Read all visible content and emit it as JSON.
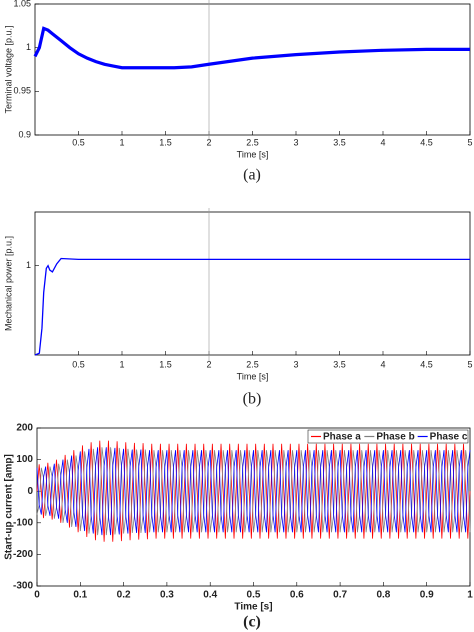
{
  "chart_data": [
    {
      "type": "line",
      "caption": "(a)",
      "xlabel": "Time [s]",
      "ylabel": "Terminal voltage [p.u.]",
      "x": [
        0,
        0.05,
        0.1,
        0.15,
        0.2,
        0.3,
        0.4,
        0.5,
        0.6,
        0.7,
        0.8,
        0.9,
        1,
        1.2,
        1.4,
        1.6,
        1.8,
        2,
        2.5,
        3,
        3.5,
        4,
        4.5,
        5
      ],
      "values": [
        0.99,
        1.0,
        1.022,
        1.02,
        1.016,
        1.008,
        1.0,
        0.993,
        0.988,
        0.984,
        0.981,
        0.979,
        0.977,
        0.977,
        0.977,
        0.977,
        0.978,
        0.981,
        0.988,
        0.992,
        0.995,
        0.997,
        0.998,
        0.998
      ],
      "color": "#0000ff",
      "xlim": [
        0,
        5
      ],
      "ylim": [
        0.9,
        1.05
      ],
      "xticks": [
        0.5,
        1,
        1.5,
        2,
        2.5,
        3,
        3.5,
        4,
        4.5,
        5
      ],
      "yticks": [
        0.9,
        0.95,
        1,
        1.05
      ],
      "cursor_x": 2
    },
    {
      "type": "line",
      "caption": "(b)",
      "xlabel": "Time [s]",
      "ylabel": "Mechanical power [p.u.]",
      "x": [
        0,
        0.05,
        0.08,
        0.1,
        0.13,
        0.15,
        0.17,
        0.2,
        0.25,
        0.3,
        0.5,
        1,
        5
      ],
      "values": [
        0,
        0.02,
        0.3,
        0.7,
        0.97,
        1.0,
        0.95,
        0.93,
        1.02,
        1.08,
        1.07,
        1.07,
        1.07
      ],
      "color": "#0000ff",
      "xlim": [
        0,
        5
      ],
      "ylim": [
        0,
        1.6
      ],
      "xticks": [
        0.5,
        1,
        1.5,
        2,
        2.5,
        3,
        3.5,
        4,
        4.5,
        5
      ],
      "yticks": [
        1
      ],
      "cursor_x": 2
    },
    {
      "type": "line",
      "caption": "(c)",
      "xlabel": "Time [s]",
      "ylabel": "Start-up current [amp]",
      "x": [
        0,
        0.005,
        0.01,
        0.015,
        0.02,
        0.025,
        0.03,
        0.035,
        0.04,
        0.045,
        0.05,
        0.055,
        0.06,
        0.065,
        0.07,
        0.075,
        0.08,
        0.085,
        0.09,
        0.095,
        0.1,
        0.105,
        0.11,
        0.115,
        0.12,
        0.125,
        0.13,
        0.135,
        0.14,
        0.145,
        0.15,
        0.155,
        0.16,
        0.165,
        0.17,
        0.175,
        0.18,
        0.185,
        0.19,
        0.195,
        0.2,
        0.205,
        0.21,
        0.215,
        0.22,
        0.225,
        0.23,
        0.235,
        0.24,
        0.245,
        0.25,
        0.255,
        0.26,
        0.265,
        0.27,
        0.275,
        0.28,
        0.285,
        0.29,
        0.295,
        0.3,
        0.305,
        0.31,
        0.315,
        0.32,
        0.325,
        0.33,
        0.335,
        0.34,
        0.345,
        0.35,
        0.355,
        0.36,
        0.365,
        0.37,
        0.375,
        0.38,
        0.385,
        0.39,
        0.395,
        0.4,
        0.405,
        0.41,
        0.415,
        0.42,
        0.425,
        0.43,
        0.435,
        0.44,
        0.445,
        0.45,
        0.455,
        0.46,
        0.465,
        0.47,
        0.475,
        0.48,
        0.485,
        0.49,
        0.495,
        0.5,
        0.505,
        0.51,
        0.515,
        0.52,
        0.525,
        0.53,
        0.535,
        0.54,
        0.545,
        0.55,
        0.555,
        0.56,
        0.565,
        0.57,
        0.575,
        0.58,
        0.585,
        0.59,
        0.595,
        0.6,
        0.605,
        0.61,
        0.615,
        0.62,
        0.625,
        0.63,
        0.635,
        0.64,
        0.645,
        0.65,
        0.655,
        0.66,
        0.665,
        0.67,
        0.675,
        0.68,
        0.685,
        0.69,
        0.695,
        0.7,
        0.705,
        0.71,
        0.715,
        0.72,
        0.725,
        0.73,
        0.735,
        0.74,
        0.745,
        0.75,
        0.755,
        0.76,
        0.765,
        0.77,
        0.775,
        0.78,
        0.785,
        0.79,
        0.795,
        0.8,
        0.805,
        0.81,
        0.815,
        0.82,
        0.825,
        0.83,
        0.835,
        0.84,
        0.845,
        0.85,
        0.855,
        0.86,
        0.865,
        0.87,
        0.875,
        0.88,
        0.885,
        0.89,
        0.895,
        0.9,
        0.905,
        0.91,
        0.915,
        0.92,
        0.925,
        0.93,
        0.935,
        0.94,
        0.945,
        0.95,
        0.955,
        0.96,
        0.965,
        0.97,
        0.975,
        0.98,
        0.985,
        0.99,
        0.995,
        1
      ],
      "series": [
        {
          "name": "Phase a",
          "color": "#ff0000",
          "values": [
            0,
            85,
            0,
            -85,
            0,
            90,
            0,
            -90,
            0,
            100,
            0,
            -100,
            0,
            115,
            0,
            -115,
            0,
            130,
            0,
            -130,
            0,
            145,
            0,
            -145,
            0,
            155,
            0,
            -155,
            0,
            160,
            0,
            -160,
            0,
            160,
            0,
            -160,
            0,
            158,
            0,
            -158,
            0,
            155,
            0,
            -155,
            0,
            153,
            0,
            -153,
            0,
            152,
            0,
            -152,
            0,
            150,
            0,
            -150,
            0,
            150,
            0,
            -150,
            0,
            150,
            0,
            -150,
            0,
            150,
            0,
            -150,
            0,
            150,
            0,
            -150,
            0,
            150,
            0,
            -150,
            0,
            150,
            0,
            -150,
            0,
            150,
            0,
            -150,
            0,
            150,
            0,
            -150,
            0,
            150,
            0,
            -150,
            0,
            150,
            0,
            -150,
            0,
            150,
            0,
            -150,
            0,
            150,
            0,
            -150,
            0,
            150,
            0,
            -150,
            0,
            150,
            0,
            -150,
            0,
            150,
            0,
            -150,
            0,
            150,
            0,
            -150,
            0,
            150,
            0,
            -150,
            0,
            150,
            0,
            -150,
            0,
            150,
            0,
            -150,
            0,
            150,
            0,
            -150,
            0,
            150,
            0,
            -150,
            0,
            150,
            0,
            -150,
            0,
            150,
            0,
            -150,
            0,
            150,
            0,
            -150,
            0,
            150,
            0,
            -150,
            0,
            150,
            0,
            -150,
            0,
            150,
            0,
            -150,
            0,
            150,
            0,
            -150,
            0,
            150,
            0,
            -150,
            0,
            150,
            0,
            -150,
            0,
            150,
            0,
            -150,
            0,
            150,
            0,
            -150,
            0,
            150,
            0,
            -150,
            0,
            150,
            0,
            -150,
            0,
            150,
            0,
            -150,
            0,
            150,
            0,
            -150,
            0
          ]
        },
        {
          "name": "Phase b",
          "color": "#808080",
          "values": [
            -74,
            -43,
            74,
            43,
            -78,
            -45,
            78,
            45,
            -87,
            -50,
            87,
            50,
            -100,
            -58,
            100,
            58,
            -113,
            -65,
            113,
            65,
            -126,
            -73,
            126,
            73,
            -134,
            -78,
            134,
            78,
            -139,
            -80,
            139,
            80,
            -139,
            -80,
            139,
            80,
            -137,
            -79,
            137,
            79,
            -134,
            -78,
            134,
            78,
            -132,
            -77,
            132,
            77,
            -132,
            -76,
            132,
            76,
            -130,
            -75,
            130,
            75,
            -130,
            -75,
            130,
            75,
            -130,
            -75,
            130,
            75,
            -130,
            -75,
            130,
            75,
            -130,
            -75,
            130,
            75,
            -130,
            -75,
            130,
            75,
            -130,
            -75,
            130,
            75,
            -130,
            -75,
            130,
            75,
            -130,
            -75,
            130,
            75,
            -130,
            -75,
            130,
            75,
            -130,
            -75,
            130,
            75,
            -130,
            -75,
            130,
            75,
            -130,
            -75,
            130,
            75,
            -130,
            -75,
            130,
            75,
            -130,
            -75,
            130,
            75,
            -130,
            -75,
            130,
            75,
            -130,
            -75,
            130,
            75,
            -130,
            -75,
            130,
            75,
            -130,
            -75,
            130,
            75,
            -130,
            -75,
            130,
            75,
            -130,
            -75,
            130,
            75,
            -130,
            -75,
            130,
            75,
            -130,
            -75,
            130,
            75,
            -130,
            -75,
            130,
            75,
            -130,
            -75,
            130,
            75,
            -130,
            -75,
            130,
            75,
            -130,
            -75,
            130,
            75,
            -130,
            -75,
            130,
            75,
            -130,
            -75,
            130,
            75,
            -130,
            -75,
            130,
            75,
            -130,
            -75,
            130,
            75,
            -130,
            -75,
            130,
            75,
            -130,
            -75,
            130,
            75,
            -130,
            -75,
            130,
            75,
            -130,
            -75,
            130,
            75,
            -130,
            -75,
            130,
            75,
            -130,
            -75,
            130,
            75,
            -130
          ]
        },
        {
          "name": "Phase c",
          "color": "#0000ff",
          "values": [
            74,
            -43,
            -74,
            43,
            78,
            -45,
            -78,
            45,
            87,
            -50,
            -87,
            50,
            100,
            -58,
            -100,
            58,
            113,
            -65,
            -113,
            65,
            126,
            -73,
            -126,
            73,
            134,
            -78,
            -134,
            78,
            139,
            -80,
            -139,
            80,
            139,
            -80,
            -139,
            80,
            137,
            -79,
            -137,
            79,
            134,
            -78,
            -134,
            78,
            132,
            -77,
            -132,
            77,
            132,
            -76,
            -132,
            76,
            130,
            -75,
            -130,
            75,
            130,
            -75,
            -130,
            75,
            130,
            -75,
            -130,
            75,
            130,
            -75,
            -130,
            75,
            130,
            -75,
            -130,
            75,
            130,
            -75,
            -130,
            75,
            130,
            -75,
            -130,
            75,
            130,
            -75,
            -130,
            75,
            130,
            -75,
            -130,
            75,
            130,
            -75,
            -130,
            75,
            130,
            -75,
            -130,
            75,
            130,
            -75,
            -130,
            75,
            130,
            -75,
            -130,
            75,
            130,
            -75,
            -130,
            75,
            130,
            -75,
            -130,
            75,
            130,
            -75,
            -130,
            75,
            130,
            -75,
            -130,
            75,
            130,
            -75,
            -130,
            75,
            130,
            -75,
            -130,
            75,
            130,
            -75,
            -130,
            75,
            130,
            -75,
            -130,
            75,
            130,
            -75,
            -130,
            75,
            130,
            -75,
            -130,
            75,
            130,
            -75,
            -130,
            75,
            130,
            -75,
            -130,
            75,
            130,
            -75,
            -130,
            75,
            130,
            -75,
            -130,
            75,
            130,
            -75,
            -130,
            75,
            130,
            -75,
            -130,
            75,
            130,
            -75,
            -130,
            75,
            130,
            -75,
            -130,
            75,
            130,
            -75,
            -130,
            75,
            130,
            -75,
            -130,
            75,
            130,
            -75,
            -130,
            75,
            130,
            -75,
            -130,
            75,
            130,
            -75,
            -130,
            75,
            130,
            -75,
            -130,
            75,
            130
          ]
        }
      ],
      "xlim": [
        0,
        1
      ],
      "ylim": [
        -300,
        200
      ],
      "xticks": [
        0,
        0.1,
        0.2,
        0.3,
        0.4,
        0.5,
        0.6,
        0.7,
        0.8,
        0.9,
        1
      ],
      "yticks": [
        -300,
        -200,
        -100,
        0,
        100,
        200
      ],
      "legend": "upper right"
    }
  ]
}
